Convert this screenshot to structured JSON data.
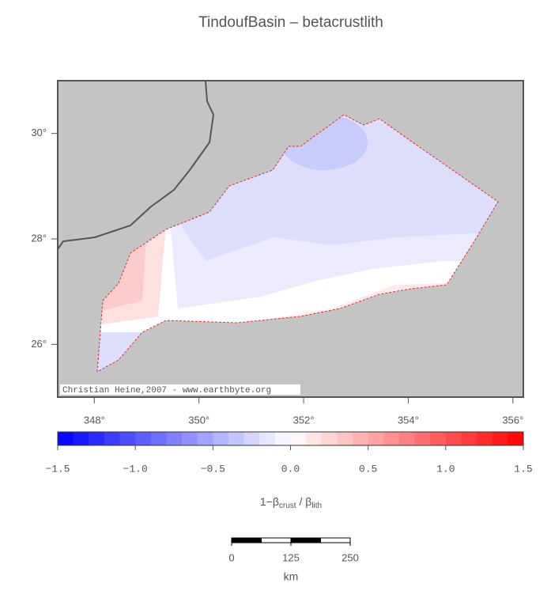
{
  "chart_data": {
    "type": "map",
    "title": "TindoufBasin – betacrustlith",
    "xlim": [
      347.3,
      356.2
    ],
    "ylim": [
      25,
      31
    ],
    "xticks": [
      {
        "value": 348,
        "label": "348°"
      },
      {
        "value": 350,
        "label": "350°"
      },
      {
        "value": 352,
        "label": "352°"
      },
      {
        "value": 354,
        "label": "354°"
      },
      {
        "value": 356,
        "label": "356°"
      }
    ],
    "yticks": [
      {
        "value": 26,
        "label": "26°"
      },
      {
        "value": 28,
        "label": "28°"
      },
      {
        "value": 30,
        "label": "30°"
      }
    ],
    "credit": "Christian Heine,2007 - www.earthbyte.org",
    "colorbar": {
      "range": [
        -1.5,
        1.5
      ],
      "low_color": "#0000ff",
      "mid_color": "#ffffff",
      "high_color": "#ff0000",
      "steps": 30,
      "ticks": [
        {
          "value": -1.5,
          "label": "−1.5"
        },
        {
          "value": -1.0,
          "label": "−1.0"
        },
        {
          "value": -0.5,
          "label": "−0.5"
        },
        {
          "value": 0,
          "label": "0.0"
        },
        {
          "value": 0.5,
          "label": "0.5"
        },
        {
          "value": 1.0,
          "label": "1.0"
        },
        {
          "value": 1.5,
          "label": "1.5"
        }
      ],
      "label": {
        "main": "1−β",
        "sub1": "crust",
        "mid": " / β",
        "sub2": "lith"
      }
    },
    "scalebar": {
      "range": [
        0,
        250
      ],
      "ticks": [
        0,
        125,
        250
      ],
      "unit": "km"
    }
  }
}
